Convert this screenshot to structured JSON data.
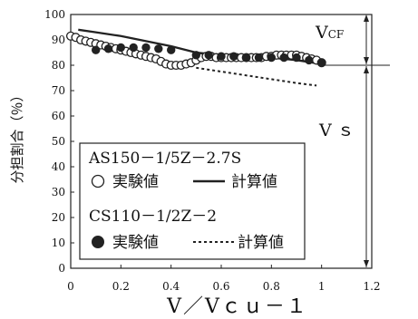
{
  "chart_data": {
    "type": "scatter",
    "xlabel": "V／Vｃｕ－１",
    "ylabel": "分担割合（％）",
    "xlim": [
      0,
      1.2
    ],
    "ylim": [
      0,
      100
    ],
    "xticks": [
      "0",
      "0.2",
      "0.4",
      "0.6",
      "0.8",
      "1",
      "1.2"
    ],
    "yticks": [
      "0",
      "10",
      "20",
      "30",
      "40",
      "50",
      "60",
      "70",
      "80",
      "90",
      "100"
    ],
    "grid": false,
    "legend_position": "bottom-left",
    "legend": {
      "group1_title": "AS150－1/5Z－2.7S",
      "group1_exp_label": "実験値",
      "group1_calc_label": "計算値",
      "group2_title": "CS110－1/2Z－2",
      "group2_exp_label": "実験値",
      "group2_calc_label": "計算値"
    },
    "annotations": {
      "vcf_main": "V",
      "vcf_sub": "CF",
      "vs": "V ｓ",
      "divider_y": 80
    },
    "series": [
      {
        "marker": "open-circle",
        "x": [
          0.0,
          0.02,
          0.04,
          0.06,
          0.08,
          0.1,
          0.12,
          0.14,
          0.16,
          0.18,
          0.2,
          0.22,
          0.24,
          0.26,
          0.28,
          0.3,
          0.32,
          0.34,
          0.36,
          0.38,
          0.4,
          0.42,
          0.44,
          0.46,
          0.48,
          0.5,
          0.52,
          0.54,
          0.56,
          0.58,
          0.6,
          0.62,
          0.64,
          0.66,
          0.68,
          0.7,
          0.72,
          0.74,
          0.76,
          0.78,
          0.8,
          0.82,
          0.84,
          0.86,
          0.88,
          0.9,
          0.92,
          0.94,
          0.96,
          0.98,
          1.0
        ],
        "y": [
          91.5,
          91,
          90,
          89.5,
          89,
          88.5,
          88,
          87.5,
          87,
          86.5,
          86,
          85.5,
          85,
          84.5,
          84,
          83.5,
          83,
          82.5,
          81.5,
          80.5,
          80,
          80,
          80,
          80.5,
          81,
          82,
          83,
          83.5,
          83.5,
          83,
          83,
          83,
          83,
          83,
          83,
          83,
          83,
          83,
          83,
          83.5,
          83.5,
          84,
          84,
          84,
          84,
          84,
          83.5,
          83,
          82.5,
          82,
          81
        ]
      },
      {
        "marker": "filled-circle",
        "x": [
          0.1,
          0.15,
          0.2,
          0.25,
          0.3,
          0.35,
          0.4,
          0.5,
          0.55,
          0.6,
          0.65,
          0.7,
          0.75,
          0.8,
          0.85,
          0.9,
          0.95,
          1.0
        ],
        "y": [
          86,
          86.5,
          87,
          87,
          87,
          86.5,
          86,
          84,
          84,
          83.5,
          83.5,
          83,
          83,
          83,
          83,
          83,
          82,
          81
        ]
      },
      {
        "line": "solid",
        "x": [
          0.03,
          0.1,
          0.2,
          0.3,
          0.4,
          0.5,
          0.6,
          0.7,
          0.8,
          0.9,
          1.0
        ],
        "y": [
          94,
          93,
          91.5,
          89.5,
          87.5,
          85,
          84,
          83.5,
          83,
          82,
          80.5
        ]
      },
      {
        "line": "dotted",
        "x": [
          0.5,
          0.6,
          0.7,
          0.8,
          0.9,
          0.98
        ],
        "y": [
          79,
          77.5,
          76,
          74.5,
          73,
          72
        ]
      }
    ]
  }
}
